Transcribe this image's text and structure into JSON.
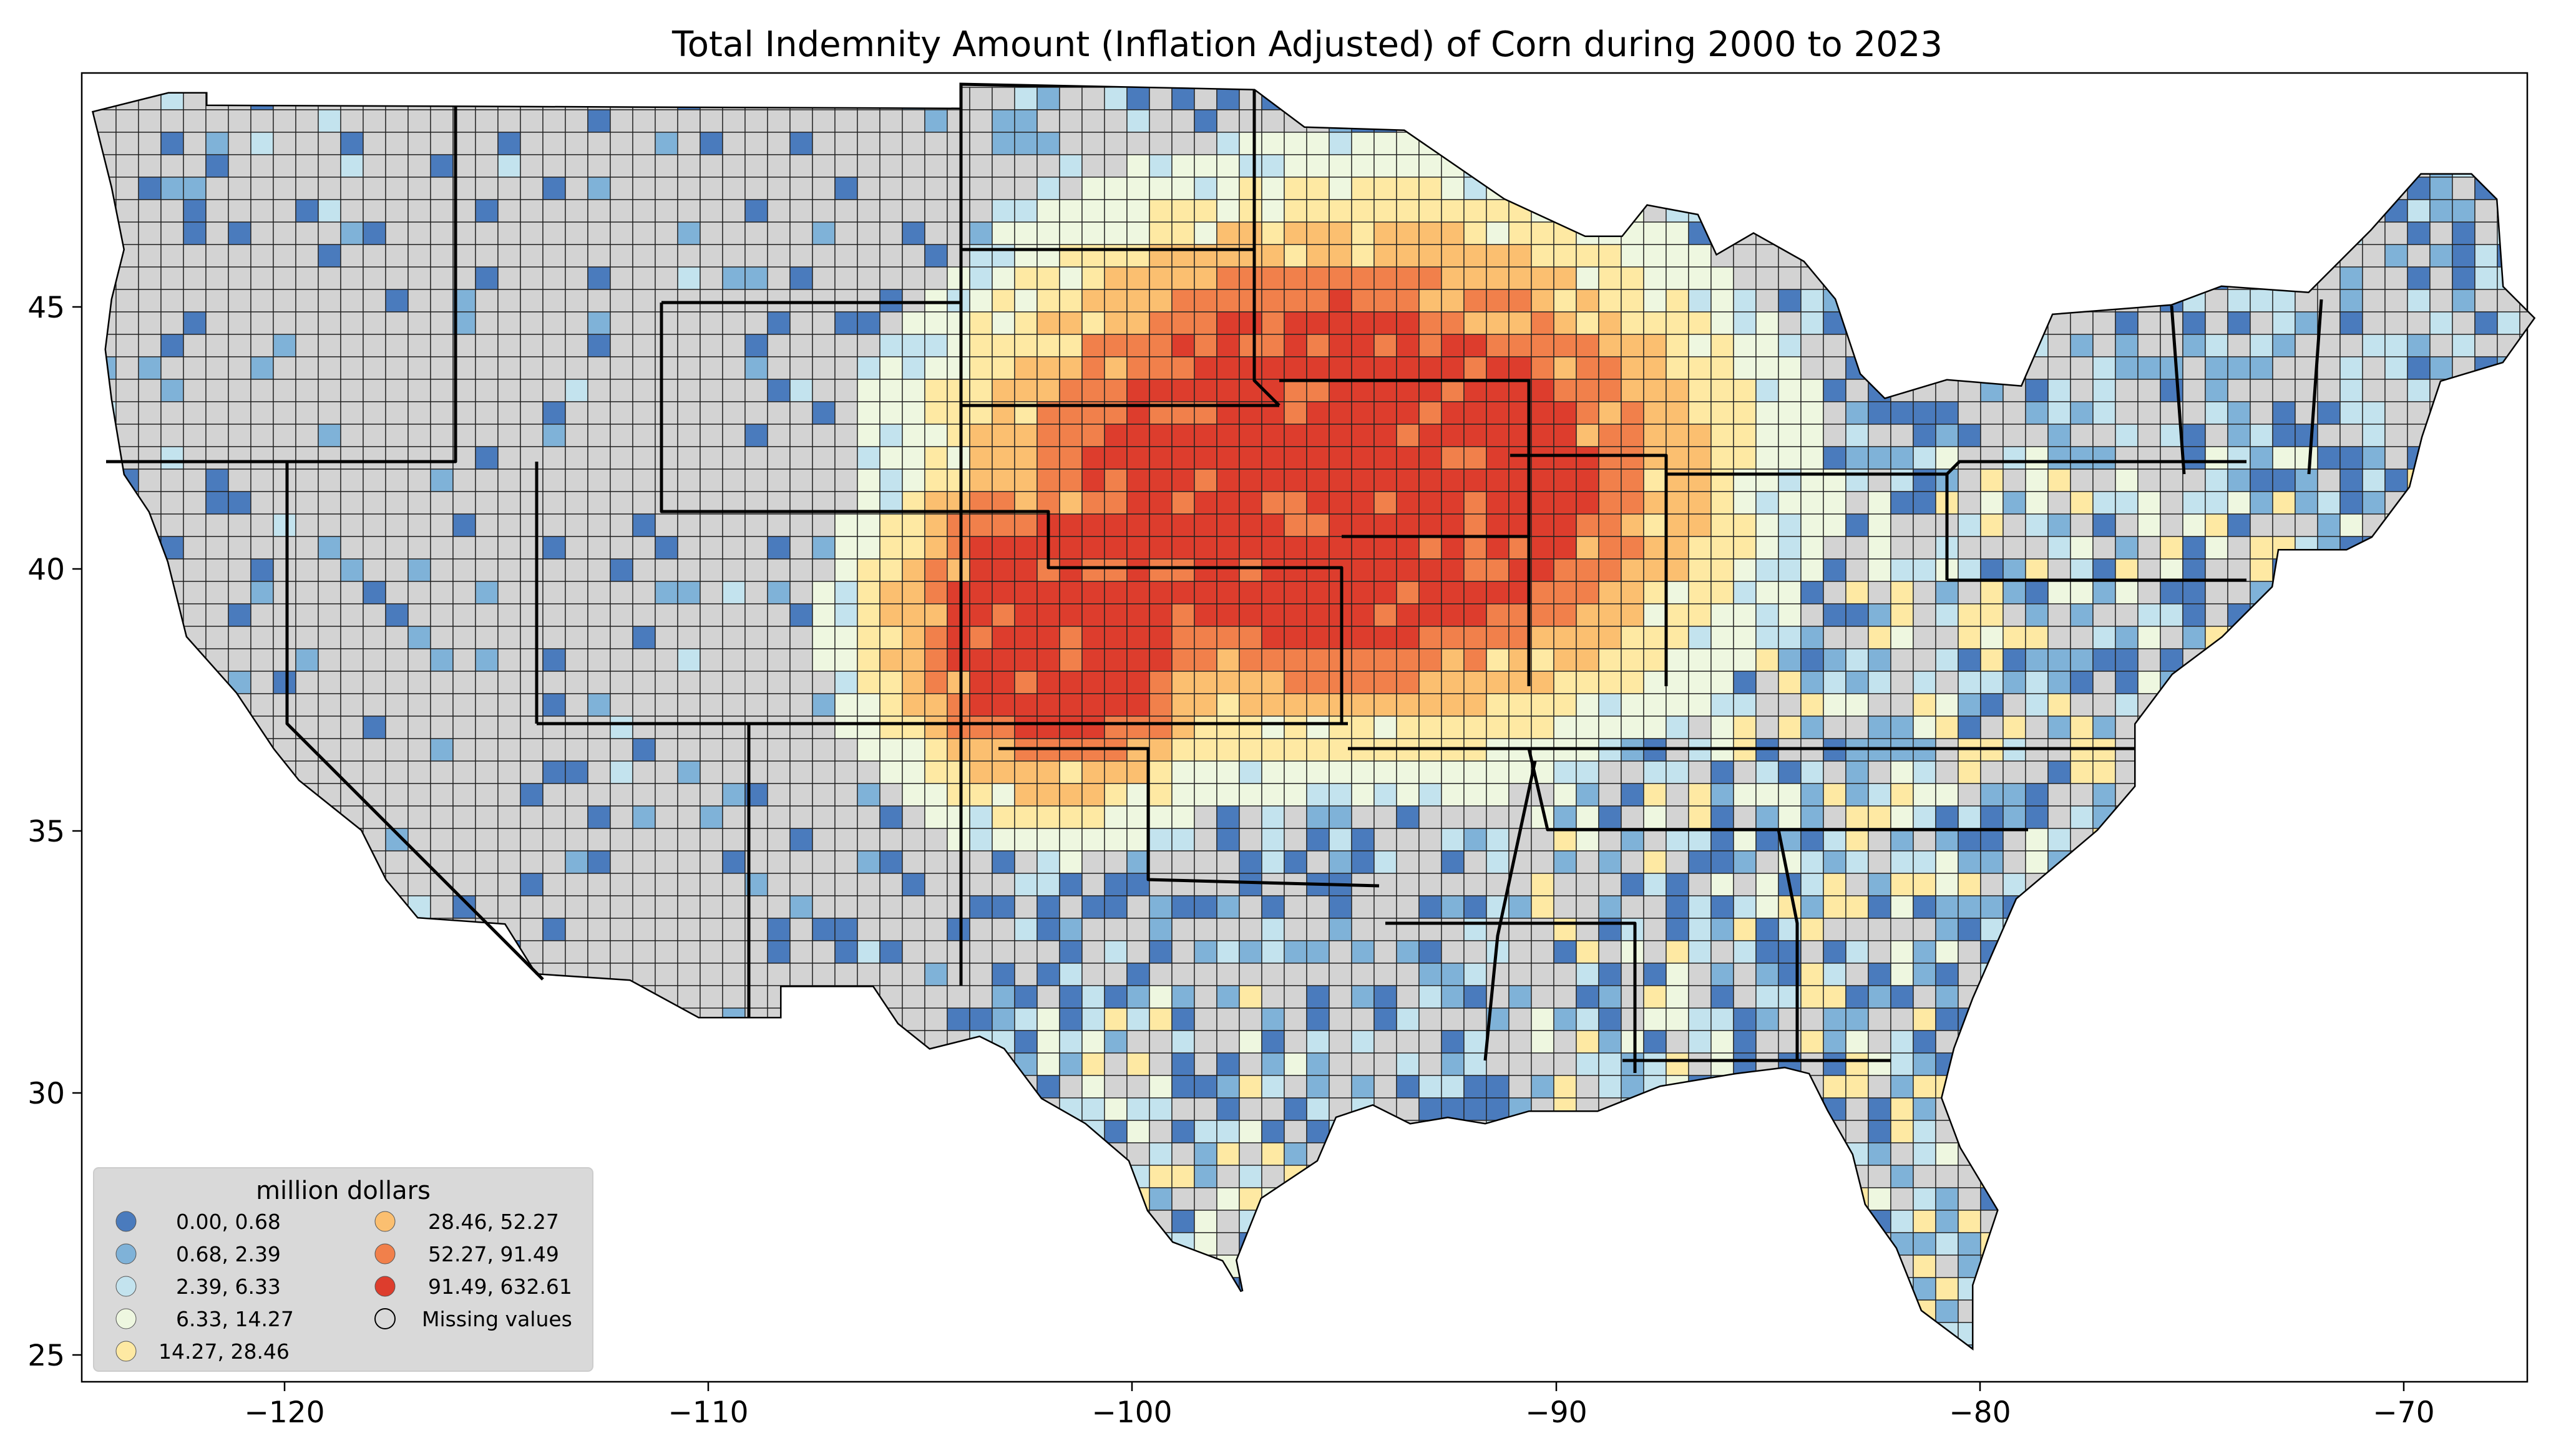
{
  "title": "Total Indemnity Amount  (Inflation Adjusted) of Corn during 2000 to 2023",
  "axes": {
    "x_ticks": [
      "−120",
      "−110",
      "−100",
      "−90",
      "−80",
      "−70"
    ],
    "y_ticks": [
      "25",
      "30",
      "35",
      "40",
      "45"
    ]
  },
  "legend": {
    "title": "million dollars",
    "items": [
      {
        "label": "0.00,   0.68",
        "color": "#4a7bbd"
      },
      {
        "label": "0.68,   2.39",
        "color": "#7fb2d8"
      },
      {
        "label": "2.39,   6.33",
        "color": "#c3e3ee"
      },
      {
        "label": "6.33,  14.27",
        "color": "#eef7e0"
      },
      {
        "label": "14.27,  28.46",
        "color": "#fee9a3"
      },
      {
        "label": "28.46,  52.27",
        "color": "#fbbf70"
      },
      {
        "label": "52.27,  91.49",
        "color": "#f1804b"
      },
      {
        "label": "91.49, 632.61",
        "color": "#dd3d2d"
      },
      {
        "label": "Missing values",
        "color": "none"
      }
    ]
  },
  "map_colors": {
    "missing": "#d3d3d3",
    "background": "#ffffff",
    "border": "#000000"
  }
}
